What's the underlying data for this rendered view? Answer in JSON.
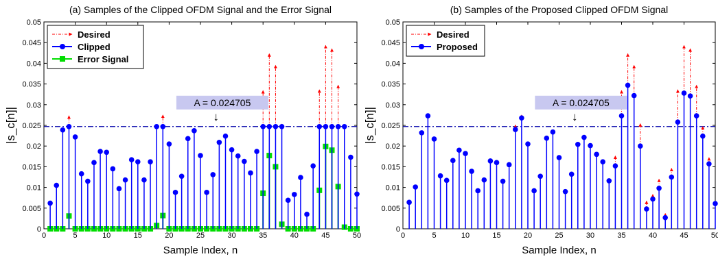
{
  "colors": {
    "desired": "#ff0000",
    "clipped": "#0000ff",
    "error": "#00dd00",
    "proposed": "#0000ff",
    "threshold": "#0000aa",
    "annotation_box": "#c8c8f0"
  },
  "chart_data": [
    {
      "type": "stem",
      "title": "(a) Samples of the Clipped OFDM Signal and the Error Signal",
      "xlabel": "Sample Index, n",
      "ylabel": "|s_c[n]|",
      "xlim": [
        0,
        50
      ],
      "ylim": [
        0,
        0.05
      ],
      "x_ticks": [
        0,
        5,
        10,
        15,
        20,
        25,
        30,
        35,
        40,
        45,
        50
      ],
      "x_tick_labels": [
        "0",
        "5",
        "10",
        "15",
        "20",
        "25",
        "30",
        "35",
        "40",
        "45",
        "50"
      ],
      "y_ticks": [
        0,
        0.005,
        0.01,
        0.015,
        0.02,
        0.025,
        0.03,
        0.035,
        0.04,
        0.045,
        0.05
      ],
      "y_tick_labels": [
        "0",
        "0.005",
        "0.01",
        "0.015",
        "0.02",
        "0.025",
        "0.03",
        "0.035",
        "0.04",
        "0.045",
        "0.05"
      ],
      "grid": false,
      "legend_position": "top-left",
      "threshold": 0.024705,
      "annotation": "A = 0.024705",
      "annotation_arrow": "↓",
      "x": [
        1,
        2,
        3,
        4,
        5,
        6,
        7,
        8,
        9,
        10,
        11,
        12,
        13,
        14,
        15,
        16,
        17,
        18,
        19,
        20,
        21,
        22,
        23,
        24,
        25,
        26,
        27,
        28,
        29,
        30,
        31,
        32,
        33,
        34,
        35,
        36,
        37,
        38,
        39,
        40,
        41,
        42,
        43,
        44,
        45,
        46,
        47,
        48,
        49,
        50
      ],
      "series": [
        {
          "name": "Desired",
          "style": "dashdot",
          "values": [
            0.0062,
            0.0105,
            0.0239,
            0.0275,
            0.0222,
            0.0133,
            0.0115,
            0.016,
            0.0187,
            0.0185,
            0.0145,
            0.0097,
            0.0118,
            0.0167,
            0.0162,
            0.0118,
            0.0162,
            0.0249,
            0.0277,
            0.0205,
            0.0088,
            0.0127,
            0.0218,
            0.0237,
            0.0177,
            0.0088,
            0.0131,
            0.0209,
            0.0224,
            0.0191,
            0.0176,
            0.0163,
            0.0135,
            0.0187,
            0.0336,
            0.0425,
            0.0397,
            0.0255,
            0.0069,
            0.0083,
            0.0124,
            0.0035,
            0.0152,
            0.0338,
            0.0445,
            0.0437,
            0.0349,
            0.0246,
            0.0173,
            0.0084
          ]
        },
        {
          "name": "Clipped",
          "style": "stem",
          "values": [
            0.0062,
            0.0105,
            0.0239,
            0.0247,
            0.0222,
            0.0133,
            0.0115,
            0.016,
            0.0187,
            0.0185,
            0.0145,
            0.0097,
            0.0118,
            0.0167,
            0.0162,
            0.0118,
            0.0162,
            0.0247,
            0.0247,
            0.0205,
            0.0088,
            0.0127,
            0.0218,
            0.0237,
            0.0177,
            0.0088,
            0.0131,
            0.0209,
            0.0224,
            0.0191,
            0.0176,
            0.0163,
            0.0135,
            0.0187,
            0.0247,
            0.0247,
            0.0247,
            0.0247,
            0.0069,
            0.0083,
            0.0124,
            0.0035,
            0.0152,
            0.0247,
            0.0247,
            0.0247,
            0.0247,
            0.0247,
            0.0173,
            0.0084
          ]
        },
        {
          "name": "Error Signal",
          "style": "stem-square",
          "values": [
            0,
            0,
            0,
            0.0031,
            0,
            0,
            0,
            0,
            0,
            0,
            0,
            0,
            0,
            0,
            0,
            0,
            0,
            0.0008,
            0.0032,
            0,
            0,
            0,
            0,
            0,
            0,
            0,
            0,
            0,
            0,
            0,
            0,
            0,
            0,
            0,
            0.0086,
            0.0177,
            0.015,
            0.0011,
            0,
            0,
            0,
            0,
            0,
            0.0093,
            0.0199,
            0.019,
            0.0102,
            0.0004,
            0,
            0
          ]
        }
      ]
    },
    {
      "type": "stem",
      "title": "(b) Samples of the Proposed Clipped OFDM Signal",
      "xlabel": "Sample Index, n",
      "ylabel": "|s_c[n]|",
      "xlim": [
        0,
        50
      ],
      "ylim": [
        0,
        0.05
      ],
      "x_ticks": [
        0,
        5,
        10,
        15,
        20,
        25,
        30,
        35,
        40,
        45,
        50
      ],
      "x_tick_labels": [
        "0",
        "5",
        "10",
        "15",
        "20",
        "25",
        "30",
        "35",
        "40",
        "45",
        "50"
      ],
      "y_ticks": [
        0,
        0.005,
        0.01,
        0.015,
        0.02,
        0.025,
        0.03,
        0.035,
        0.04,
        0.045,
        0.05
      ],
      "y_tick_labels": [
        "0",
        "0.005",
        "0.01",
        "0.015",
        "0.02",
        "0.025",
        "0.03",
        "0.035",
        "0.04",
        "0.045",
        "0.05"
      ],
      "grid": false,
      "legend_position": "top-left",
      "threshold": 0.024705,
      "annotation": "A = 0.024705",
      "annotation_arrow": "↓",
      "x": [
        1,
        2,
        3,
        4,
        5,
        6,
        7,
        8,
        9,
        10,
        11,
        12,
        13,
        14,
        15,
        16,
        17,
        18,
        19,
        20,
        21,
        22,
        23,
        24,
        25,
        26,
        27,
        28,
        29,
        30,
        31,
        32,
        33,
        34,
        35,
        36,
        37,
        38,
        39,
        40,
        41,
        42,
        43,
        44,
        45,
        46,
        47,
        48,
        49,
        50
      ],
      "series": [
        {
          "name": "Desired",
          "style": "dashdot",
          "values": [
            0.0064,
            0.0102,
            0.0236,
            0.0273,
            0.0217,
            0.0128,
            0.0117,
            0.0165,
            0.019,
            0.0185,
            0.0143,
            0.0092,
            0.0118,
            0.0164,
            0.016,
            0.0115,
            0.016,
            0.0253,
            0.0277,
            0.0205,
            0.0093,
            0.0129,
            0.0219,
            0.0235,
            0.0172,
            0.009,
            0.0133,
            0.0204,
            0.0223,
            0.0201,
            0.0182,
            0.0162,
            0.0121,
            0.0178,
            0.0336,
            0.0425,
            0.0397,
            0.0256,
            0.0069,
            0.0085,
            0.0122,
            0.0039,
            0.0148,
            0.0338,
            0.0445,
            0.0437,
            0.0349,
            0.0249,
            0.0174,
            0.0067
          ]
        },
        {
          "name": "Proposed",
          "style": "stem",
          "values": [
            0.0064,
            0.0101,
            0.0232,
            0.0273,
            0.0217,
            0.0128,
            0.0117,
            0.0165,
            0.019,
            0.0182,
            0.0139,
            0.0092,
            0.0118,
            0.0164,
            0.016,
            0.0115,
            0.0155,
            0.024,
            0.0268,
            0.0205,
            0.0092,
            0.0127,
            0.0219,
            0.0234,
            0.0172,
            0.009,
            0.0132,
            0.0204,
            0.0221,
            0.0201,
            0.018,
            0.0162,
            0.0116,
            0.0152,
            0.0273,
            0.0347,
            0.0322,
            0.02,
            0.0048,
            0.0072,
            0.0098,
            0.0027,
            0.0125,
            0.0258,
            0.0328,
            0.0321,
            0.0273,
            0.0224,
            0.0157,
            0.0061
          ]
        }
      ]
    }
  ]
}
